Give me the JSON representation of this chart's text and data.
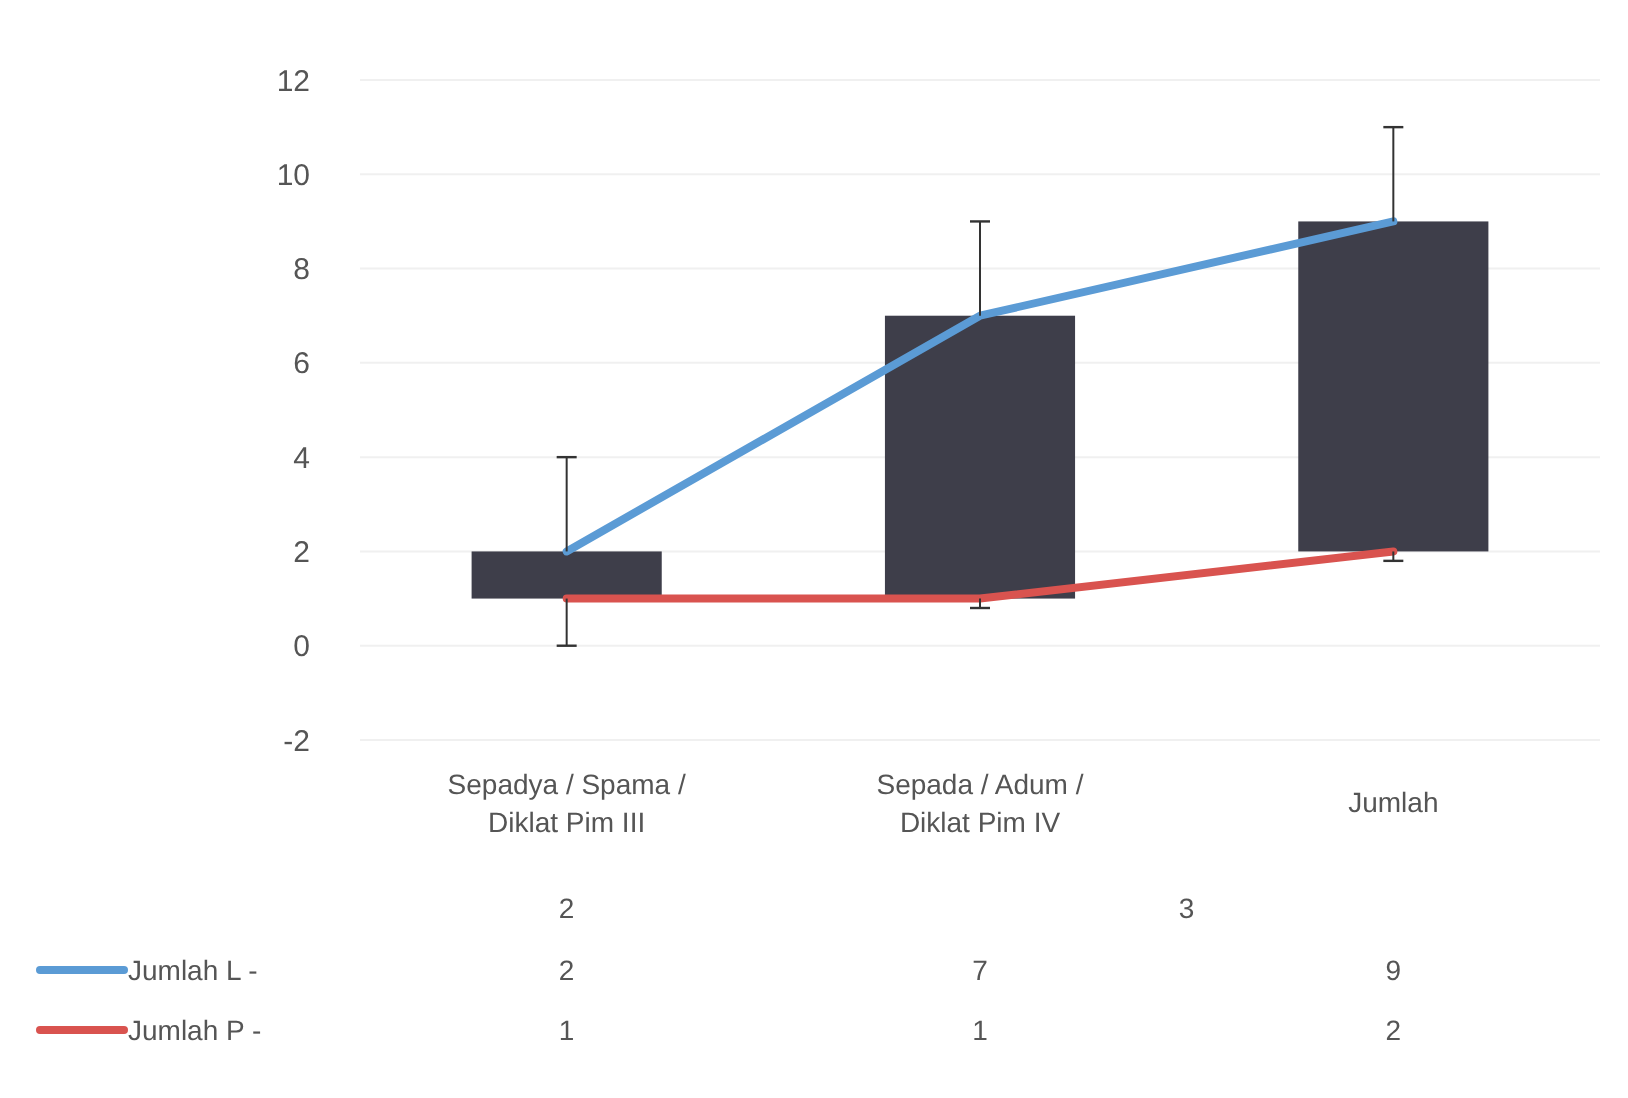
{
  "chart_data": {
    "type": "line",
    "categories": [
      "Sepadya / Spama / Diklat Pim III",
      "Sepada / Adum / Diklat Pim IV",
      "Jumlah"
    ],
    "series": [
      {
        "type": "bar",
        "color": "#3e3e4a",
        "values": [
          1,
          6,
          7
        ],
        "base": [
          1,
          1,
          2
        ]
      },
      {
        "name": "Jumlah  L -",
        "color": "#5b9bd5",
        "values": [
          2,
          7,
          9
        ],
        "value_labels": [
          "2",
          "7",
          "9"
        ],
        "errors": [
          [
            2,
            4
          ],
          [
            7,
            9
          ],
          [
            9,
            11
          ]
        ]
      },
      {
        "name": "Jumlah  P -",
        "color": "#d9534f",
        "values": [
          1,
          1,
          2
        ],
        "value_labels": [
          "1",
          "1",
          "2"
        ],
        "errors": [
          [
            0,
            1
          ],
          [
            0.8,
            1
          ],
          [
            1.8,
            2
          ]
        ]
      }
    ],
    "annotations": [
      "2",
      "3"
    ],
    "ylim": [
      -2,
      12
    ],
    "yticks": [
      -2,
      0,
      2,
      4,
      6,
      8,
      10,
      12
    ],
    "grid": "y",
    "legend": "bottom",
    "marker": "none"
  }
}
